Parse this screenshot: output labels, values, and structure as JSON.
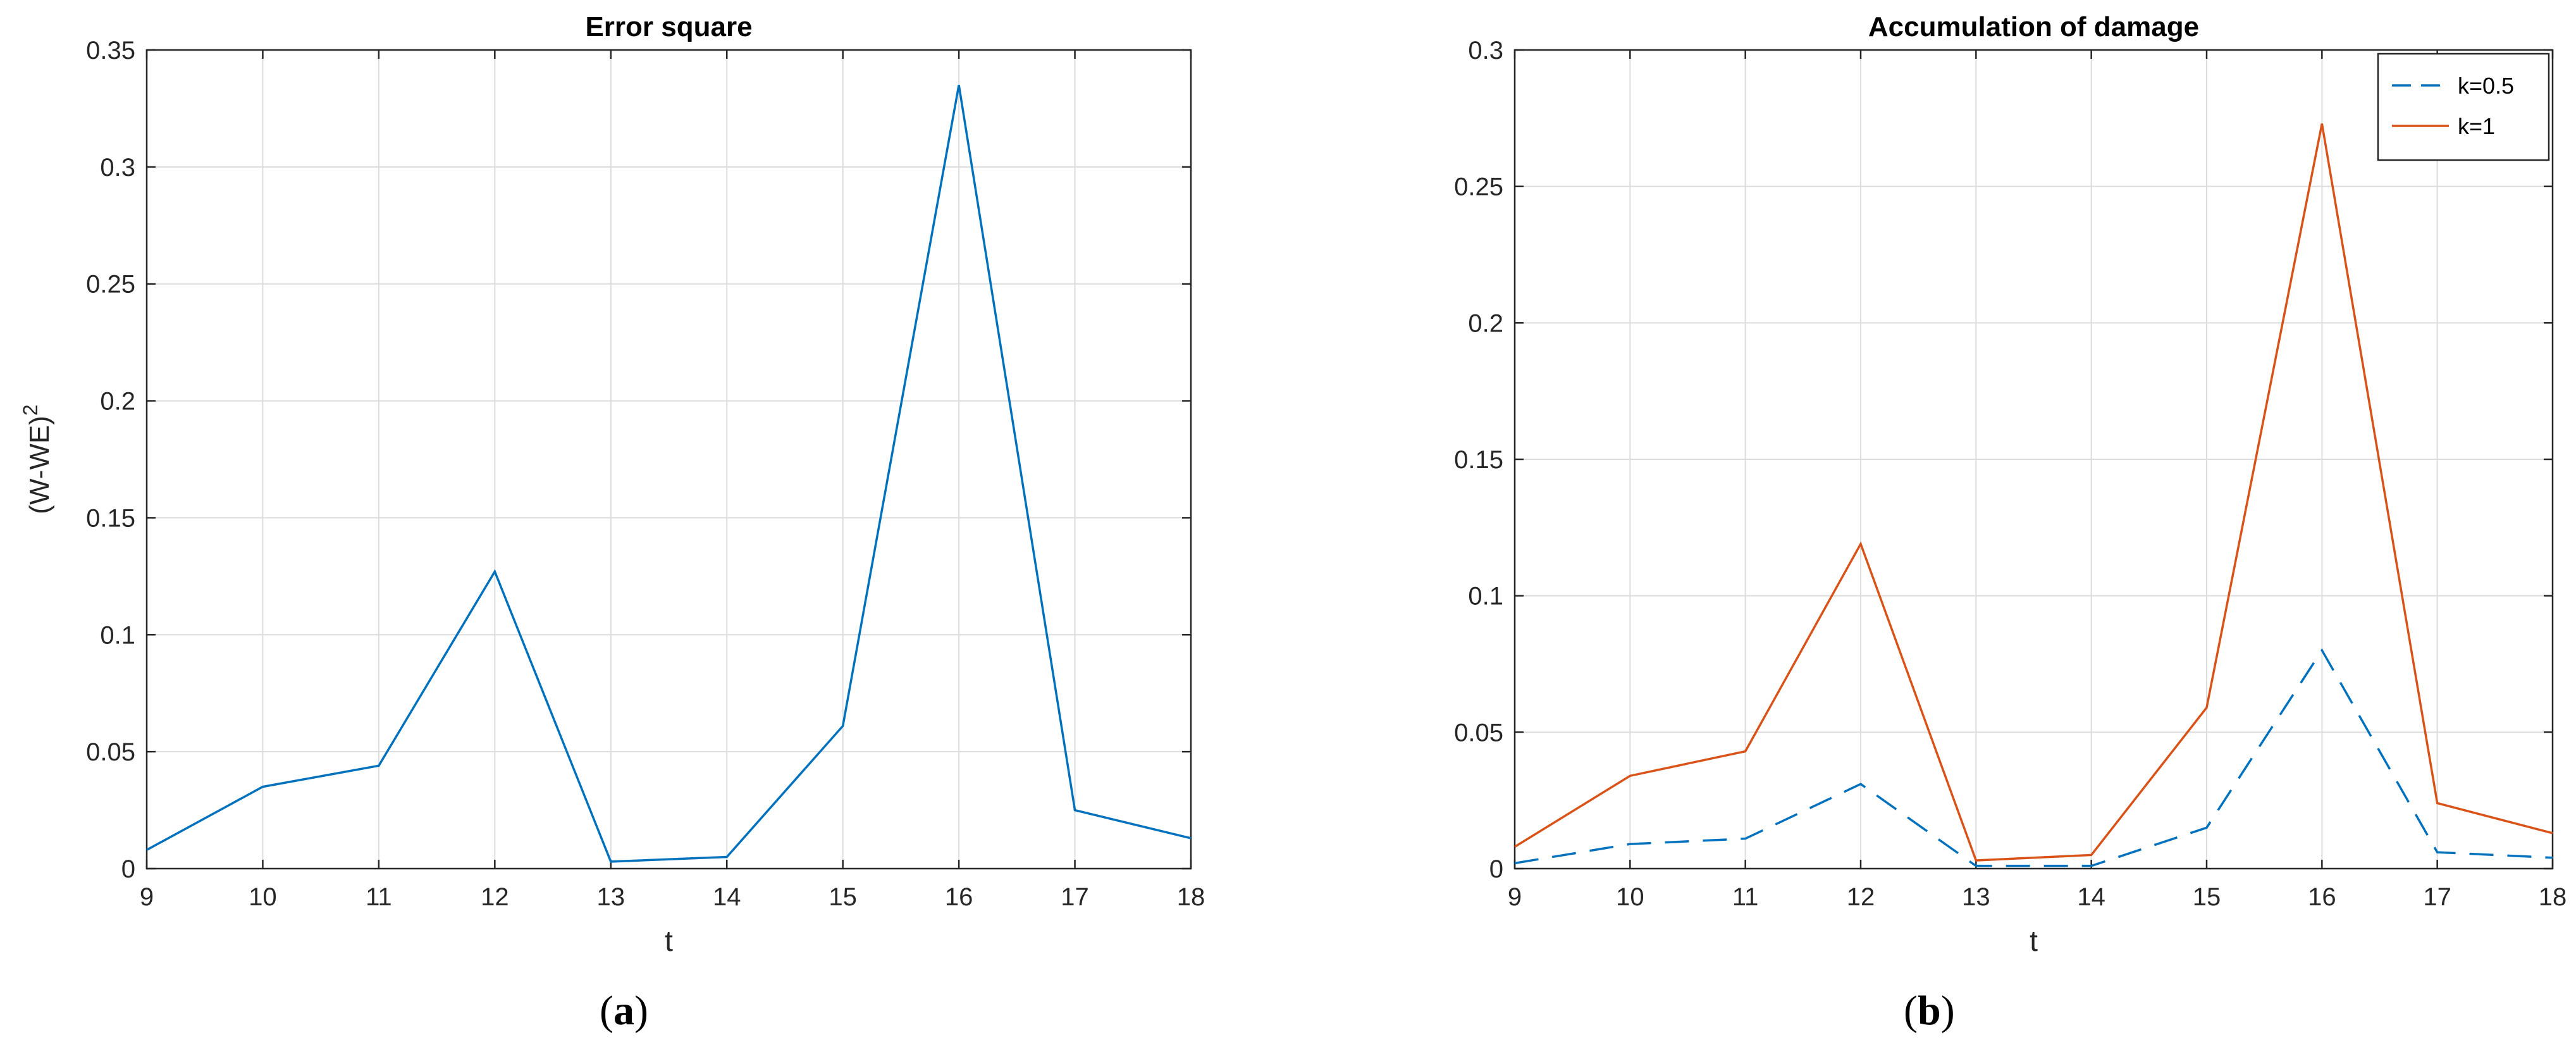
{
  "figure": {
    "panels": [
      {
        "caption_letter": "a"
      },
      {
        "caption_letter": "b"
      }
    ]
  },
  "chart_data": [
    {
      "type": "line",
      "title": "Error square",
      "xlabel": "t",
      "ylabel": "(W-WE)",
      "ylabel_superscript": "2",
      "xlim": [
        9,
        18
      ],
      "ylim": [
        0,
        0.35
      ],
      "xticks": [
        "9",
        "10",
        "11",
        "12",
        "13",
        "14",
        "15",
        "16",
        "17",
        "18"
      ],
      "yticks": [
        "0",
        "0.05",
        "0.1",
        "0.15",
        "0.2",
        "0.25",
        "0.3",
        "0.35"
      ],
      "grid": true,
      "x": [
        9,
        10,
        11,
        12,
        13,
        14,
        15,
        16,
        17,
        18
      ],
      "series": [
        {
          "color": "#0072bd",
          "style": "solid",
          "values": [
            0.008,
            0.035,
            0.044,
            0.127,
            0.003,
            0.005,
            0.061,
            0.335,
            0.025,
            0.013
          ]
        }
      ]
    },
    {
      "type": "line",
      "title": "Accumulation of damage",
      "xlabel": "t",
      "ylabel": "",
      "xlim": [
        9,
        18
      ],
      "ylim": [
        0,
        0.3
      ],
      "xticks": [
        "9",
        "10",
        "11",
        "12",
        "13",
        "14",
        "15",
        "16",
        "17",
        "18"
      ],
      "yticks": [
        "0",
        "0.05",
        "0.1",
        "0.15",
        "0.2",
        "0.25",
        "0.3"
      ],
      "grid": true,
      "legend_position": "top-right",
      "x": [
        9,
        10,
        11,
        12,
        13,
        14,
        15,
        16,
        17,
        18
      ],
      "series": [
        {
          "name": "k=0.5",
          "color": "#0072bd",
          "style": "dashed",
          "values": [
            0.002,
            0.009,
            0.011,
            0.031,
            0.001,
            0.001,
            0.015,
            0.08,
            0.006,
            0.004
          ]
        },
        {
          "name": "k=1",
          "color": "#d95319",
          "style": "solid",
          "values": [
            0.008,
            0.034,
            0.043,
            0.119,
            0.003,
            0.005,
            0.059,
            0.273,
            0.024,
            0.013
          ]
        }
      ]
    }
  ]
}
